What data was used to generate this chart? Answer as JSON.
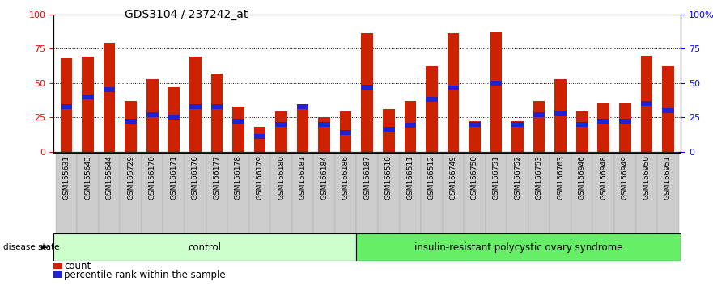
{
  "title": "GDS3104 / 237242_at",
  "samples": [
    "GSM155631",
    "GSM155643",
    "GSM155644",
    "GSM155729",
    "GSM156170",
    "GSM156171",
    "GSM156176",
    "GSM156177",
    "GSM156178",
    "GSM156179",
    "GSM156180",
    "GSM156181",
    "GSM156184",
    "GSM156186",
    "GSM156187",
    "GSM156510",
    "GSM156511",
    "GSM156512",
    "GSM156749",
    "GSM156750",
    "GSM156751",
    "GSM156752",
    "GSM156753",
    "GSM156763",
    "GSM156946",
    "GSM156948",
    "GSM156949",
    "GSM156950",
    "GSM156951"
  ],
  "count_values": [
    68,
    69,
    79,
    37,
    53,
    47,
    69,
    57,
    33,
    18,
    29,
    33,
    25,
    29,
    86,
    31,
    37,
    62,
    86,
    22,
    87,
    22,
    37,
    53,
    29,
    35,
    35,
    70,
    62
  ],
  "percentile_values": [
    33,
    40,
    45,
    22,
    27,
    25,
    33,
    33,
    22,
    11,
    20,
    33,
    20,
    14,
    47,
    16,
    19,
    38,
    46,
    20,
    50,
    20,
    27,
    28,
    20,
    22,
    22,
    35,
    30
  ],
  "control_count": 14,
  "bar_color": "#cc2200",
  "percentile_color": "#2222cc",
  "control_bg": "#ccffcc",
  "pcos_bg": "#66ee66",
  "xtick_bg": "#cccccc",
  "control_label": "control",
  "pcos_label": "insulin-resistant polycystic ovary syndrome",
  "disease_label": "disease state",
  "legend_count": "count",
  "legend_percentile": "percentile rank within the sample",
  "ylim": [
    0,
    100
  ],
  "yticks": [
    0,
    25,
    50,
    75,
    100
  ],
  "pct_bar_height": 3.5,
  "bar_width": 0.55,
  "title_fontsize": 10,
  "tick_fontsize": 6.5
}
